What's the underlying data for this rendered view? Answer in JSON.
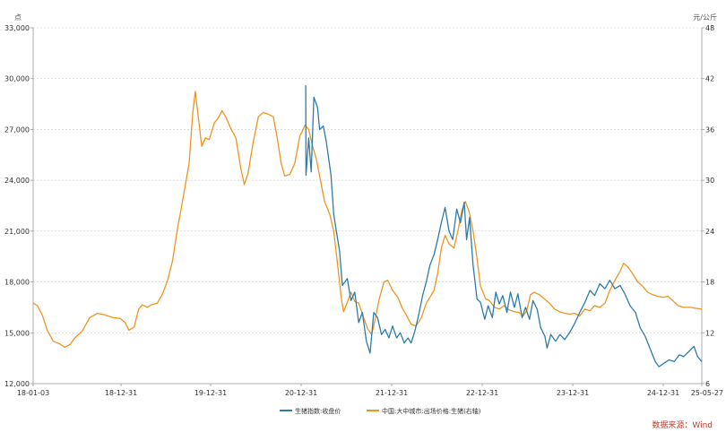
{
  "chart_data": {
    "type": "line",
    "left_unit": "点",
    "right_unit": "元/公斤",
    "x_ticks": [
      "18-01-03",
      "18-12-31",
      "19-12-31",
      "20-12-31",
      "21-12-31",
      "22-12-31",
      "23-12-31",
      "24-12-31",
      "25-05-27"
    ],
    "x_range": [
      "2018-01-03",
      "2025-05-27"
    ],
    "y_left": {
      "ticks": [
        "12,000",
        "15,000",
        "18,000",
        "21,000",
        "24,000",
        "27,000",
        "30,000",
        "33,000"
      ],
      "range": [
        12000,
        33000
      ]
    },
    "y_right": {
      "ticks": [
        "6",
        "12",
        "18",
        "24",
        "30",
        "36",
        "42",
        "48"
      ],
      "range": [
        6,
        48
      ]
    },
    "grid": true,
    "legend_position": "bottom",
    "series": [
      {
        "name": "生猪指数:收盘价",
        "axis": "left",
        "color": "#2e7bab",
        "points": [
          [
            "2021-01-08",
            29600
          ],
          [
            "2021-01-09",
            24300
          ],
          [
            "2021-01-20",
            26500
          ],
          [
            "2021-01-30",
            24500
          ],
          [
            "2021-02-10",
            28900
          ],
          [
            "2021-02-25",
            28300
          ],
          [
            "2021-03-05",
            27000
          ],
          [
            "2021-03-20",
            27200
          ],
          [
            "2021-04-01",
            26300
          ],
          [
            "2021-04-20",
            24300
          ],
          [
            "2021-05-01",
            22000
          ],
          [
            "2021-05-15",
            20700
          ],
          [
            "2021-05-25",
            19800
          ],
          [
            "2021-06-05",
            17800
          ],
          [
            "2021-06-25",
            18200
          ],
          [
            "2021-07-10",
            16900
          ],
          [
            "2021-07-25",
            17400
          ],
          [
            "2021-08-10",
            15600
          ],
          [
            "2021-08-25",
            16200
          ],
          [
            "2021-09-10",
            14500
          ],
          [
            "2021-09-25",
            13800
          ],
          [
            "2021-10-10",
            16200
          ],
          [
            "2021-10-25",
            15900
          ],
          [
            "2021-11-10",
            14900
          ],
          [
            "2021-11-25",
            15200
          ],
          [
            "2021-12-10",
            14700
          ],
          [
            "2021-12-25",
            15400
          ],
          [
            "2022-01-10",
            14700
          ],
          [
            "2022-01-25",
            15000
          ],
          [
            "2022-02-10",
            14400
          ],
          [
            "2022-02-25",
            14700
          ],
          [
            "2022-03-10",
            14400
          ],
          [
            "2022-03-25",
            15100
          ],
          [
            "2022-04-10",
            16100
          ],
          [
            "2022-04-25",
            17200
          ],
          [
            "2022-05-10",
            18000
          ],
          [
            "2022-05-25",
            19000
          ],
          [
            "2022-06-10",
            19600
          ],
          [
            "2022-06-25",
            20500
          ],
          [
            "2022-07-10",
            21500
          ],
          [
            "2022-07-25",
            22400
          ],
          [
            "2022-08-10",
            21000
          ],
          [
            "2022-08-25",
            20500
          ],
          [
            "2022-09-10",
            22300
          ],
          [
            "2022-09-25",
            21500
          ],
          [
            "2022-10-10",
            22700
          ],
          [
            "2022-10-20",
            20500
          ],
          [
            "2022-11-01",
            21800
          ],
          [
            "2022-11-15",
            19000
          ],
          [
            "2022-12-01",
            17000
          ],
          [
            "2022-12-15",
            16800
          ],
          [
            "2023-01-01",
            15800
          ],
          [
            "2023-01-15",
            16600
          ],
          [
            "2023-02-01",
            15900
          ],
          [
            "2023-02-15",
            17400
          ],
          [
            "2023-03-01",
            16700
          ],
          [
            "2023-03-15",
            17200
          ],
          [
            "2023-04-01",
            16200
          ],
          [
            "2023-04-15",
            17400
          ],
          [
            "2023-05-01",
            16500
          ],
          [
            "2023-05-15",
            17300
          ],
          [
            "2023-06-01",
            15900
          ],
          [
            "2023-06-15",
            16500
          ],
          [
            "2023-07-01",
            15800
          ],
          [
            "2023-07-15",
            16900
          ],
          [
            "2023-08-01",
            16400
          ],
          [
            "2023-08-15",
            15300
          ],
          [
            "2023-09-01",
            14800
          ],
          [
            "2023-09-10",
            14100
          ],
          [
            "2023-09-25",
            14900
          ],
          [
            "2023-10-15",
            14500
          ],
          [
            "2023-11-01",
            14900
          ],
          [
            "2023-11-20",
            14600
          ],
          [
            "2023-12-10",
            15000
          ],
          [
            "2024-01-01",
            15600
          ],
          [
            "2024-01-20",
            16200
          ],
          [
            "2024-02-10",
            16800
          ],
          [
            "2024-03-01",
            17500
          ],
          [
            "2024-03-20",
            17200
          ],
          [
            "2024-04-10",
            17900
          ],
          [
            "2024-05-01",
            17600
          ],
          [
            "2024-05-20",
            18100
          ],
          [
            "2024-06-10",
            17600
          ],
          [
            "2024-07-01",
            17800
          ],
          [
            "2024-07-20",
            17300
          ],
          [
            "2024-08-10",
            16600
          ],
          [
            "2024-09-01",
            16200
          ],
          [
            "2024-09-20",
            15300
          ],
          [
            "2024-10-10",
            14800
          ],
          [
            "2024-11-01",
            14000
          ],
          [
            "2024-11-20",
            13300
          ],
          [
            "2024-12-05",
            13000
          ],
          [
            "2024-12-25",
            13200
          ],
          [
            "2025-01-15",
            13400
          ],
          [
            "2025-02-05",
            13300
          ],
          [
            "2025-02-25",
            13700
          ],
          [
            "2025-03-15",
            13600
          ],
          [
            "2025-04-05",
            13900
          ],
          [
            "2025-04-25",
            14200
          ],
          [
            "2025-05-10",
            13600
          ],
          [
            "2025-05-27",
            13300
          ]
        ]
      },
      {
        "name": "中国:大中城市:出场价格:生猪(右轴)",
        "axis": "right",
        "color": "#f0941f",
        "points": [
          [
            "2018-01-03",
            15.5
          ],
          [
            "2018-01-20",
            15.2
          ],
          [
            "2018-02-10",
            14.0
          ],
          [
            "2018-03-01",
            12.3
          ],
          [
            "2018-03-25",
            11.0
          ],
          [
            "2018-04-20",
            10.7
          ],
          [
            "2018-05-10",
            10.3
          ],
          [
            "2018-06-01",
            10.6
          ],
          [
            "2018-06-20",
            11.4
          ],
          [
            "2018-07-20",
            12.2
          ],
          [
            "2018-08-20",
            13.8
          ],
          [
            "2018-09-20",
            14.3
          ],
          [
            "2018-10-20",
            14.1
          ],
          [
            "2018-11-20",
            13.8
          ],
          [
            "2018-12-20",
            13.7
          ],
          [
            "2019-01-10",
            13.2
          ],
          [
            "2019-01-25",
            12.3
          ],
          [
            "2019-02-15",
            12.7
          ],
          [
            "2019-03-05",
            14.8
          ],
          [
            "2019-03-20",
            15.3
          ],
          [
            "2019-04-10",
            15.0
          ],
          [
            "2019-04-25",
            15.3
          ],
          [
            "2019-05-20",
            15.5
          ],
          [
            "2019-06-10",
            16.6
          ],
          [
            "2019-06-30",
            18.2
          ],
          [
            "2019-07-20",
            20.5
          ],
          [
            "2019-08-10",
            24.5
          ],
          [
            "2019-08-25",
            26.8
          ],
          [
            "2019-09-10",
            29.5
          ],
          [
            "2019-09-25",
            32.0
          ],
          [
            "2019-10-10",
            38.0
          ],
          [
            "2019-10-20",
            40.5
          ],
          [
            "2019-11-01",
            37.5
          ],
          [
            "2019-11-15",
            34.0
          ],
          [
            "2019-11-30",
            35.0
          ],
          [
            "2019-12-15",
            34.8
          ],
          [
            "2020-01-05",
            36.8
          ],
          [
            "2020-01-20",
            37.3
          ],
          [
            "2020-02-05",
            38.2
          ],
          [
            "2020-02-20",
            37.5
          ],
          [
            "2020-03-10",
            36.2
          ],
          [
            "2020-04-01",
            35.0
          ],
          [
            "2020-04-20",
            31.5
          ],
          [
            "2020-05-05",
            29.5
          ],
          [
            "2020-05-20",
            30.8
          ],
          [
            "2020-06-10",
            34.5
          ],
          [
            "2020-07-01",
            37.5
          ],
          [
            "2020-07-20",
            38.0
          ],
          [
            "2020-08-10",
            37.8
          ],
          [
            "2020-08-30",
            37.5
          ],
          [
            "2020-09-15",
            35.0
          ],
          [
            "2020-10-01",
            32.0
          ],
          [
            "2020-10-15",
            30.5
          ],
          [
            "2020-11-05",
            30.7
          ],
          [
            "2020-11-25",
            32.0
          ],
          [
            "2020-12-15",
            35.2
          ],
          [
            "2021-01-05",
            36.5
          ],
          [
            "2021-01-20",
            36.0
          ],
          [
            "2021-02-05",
            34.0
          ],
          [
            "2021-02-20",
            32.5
          ],
          [
            "2021-03-05",
            30.5
          ],
          [
            "2021-03-25",
            27.5
          ],
          [
            "2021-04-15",
            26.0
          ],
          [
            "2021-05-01",
            24.0
          ],
          [
            "2021-05-15",
            20.5
          ],
          [
            "2021-06-01",
            16.0
          ],
          [
            "2021-06-10",
            14.5
          ],
          [
            "2021-06-20",
            15.2
          ],
          [
            "2021-07-10",
            16.8
          ],
          [
            "2021-07-25",
            15.7
          ],
          [
            "2021-08-10",
            15.5
          ],
          [
            "2021-08-30",
            13.8
          ],
          [
            "2021-09-15",
            12.5
          ],
          [
            "2021-10-01",
            11.8
          ],
          [
            "2021-10-15",
            13.5
          ],
          [
            "2021-11-01",
            16.0
          ],
          [
            "2021-11-20",
            18.0
          ],
          [
            "2021-12-05",
            18.2
          ],
          [
            "2021-12-25",
            17.0
          ],
          [
            "2022-01-15",
            16.2
          ],
          [
            "2022-02-01",
            15.0
          ],
          [
            "2022-02-20",
            14.0
          ],
          [
            "2022-03-10",
            13.0
          ],
          [
            "2022-03-30",
            12.8
          ],
          [
            "2022-04-20",
            13.8
          ],
          [
            "2022-05-10",
            15.5
          ],
          [
            "2022-05-25",
            16.2
          ],
          [
            "2022-06-10",
            17.0
          ],
          [
            "2022-06-25",
            19.0
          ],
          [
            "2022-07-10",
            22.0
          ],
          [
            "2022-07-25",
            23.5
          ],
          [
            "2022-08-10",
            22.5
          ],
          [
            "2022-08-30",
            22.0
          ],
          [
            "2022-09-15",
            24.0
          ],
          [
            "2022-10-01",
            26.5
          ],
          [
            "2022-10-15",
            27.5
          ],
          [
            "2022-10-30",
            26.3
          ],
          [
            "2022-11-15",
            24.0
          ],
          [
            "2022-11-30",
            21.0
          ],
          [
            "2022-12-15",
            17.5
          ],
          [
            "2023-01-05",
            16.0
          ],
          [
            "2023-01-20",
            15.8
          ],
          [
            "2023-02-10",
            15.0
          ],
          [
            "2023-03-01",
            14.8
          ],
          [
            "2023-03-20",
            15.2
          ],
          [
            "2023-04-10",
            14.7
          ],
          [
            "2023-04-30",
            14.5
          ],
          [
            "2023-05-20",
            14.4
          ],
          [
            "2023-06-05",
            14.0
          ],
          [
            "2023-06-20",
            14.6
          ],
          [
            "2023-07-05",
            16.5
          ],
          [
            "2023-07-20",
            16.8
          ],
          [
            "2023-08-10",
            16.5
          ],
          [
            "2023-08-30",
            16.0
          ],
          [
            "2023-09-20",
            15.5
          ],
          [
            "2023-10-10",
            14.8
          ],
          [
            "2023-10-30",
            14.5
          ],
          [
            "2023-11-20",
            14.3
          ],
          [
            "2023-12-10",
            14.2
          ],
          [
            "2023-12-30",
            14.3
          ],
          [
            "2024-01-20",
            14.0
          ],
          [
            "2024-02-10",
            14.8
          ],
          [
            "2024-03-01",
            14.6
          ],
          [
            "2024-03-20",
            15.2
          ],
          [
            "2024-04-10",
            15.0
          ],
          [
            "2024-05-01",
            15.5
          ],
          [
            "2024-05-20",
            17.0
          ],
          [
            "2024-06-10",
            18.2
          ],
          [
            "2024-06-30",
            19.2
          ],
          [
            "2024-07-15",
            20.2
          ],
          [
            "2024-08-01",
            19.8
          ],
          [
            "2024-08-20",
            19.0
          ],
          [
            "2024-09-10",
            18.0
          ],
          [
            "2024-09-30",
            17.5
          ],
          [
            "2024-10-20",
            16.8
          ],
          [
            "2024-11-10",
            16.5
          ],
          [
            "2024-12-01",
            16.3
          ],
          [
            "2024-12-20",
            16.2
          ],
          [
            "2025-01-10",
            16.3
          ],
          [
            "2025-01-30",
            15.8
          ],
          [
            "2025-02-20",
            15.2
          ],
          [
            "2025-03-15",
            15.0
          ],
          [
            "2025-04-10",
            15.0
          ],
          [
            "2025-05-01",
            14.9
          ],
          [
            "2025-05-27",
            14.8
          ]
        ]
      }
    ]
  },
  "source_text": "数据来源：Wind"
}
